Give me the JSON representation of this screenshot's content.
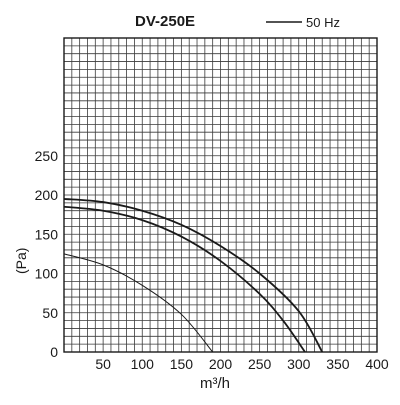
{
  "chart_data": {
    "type": "line",
    "title": "DV-250E",
    "xlabel": "m³/h",
    "ylabel": "(Pa)",
    "xlim": [
      0,
      400
    ],
    "ylim": [
      0,
      400
    ],
    "x_ticks": [
      "50",
      "100",
      "150",
      "200",
      "250",
      "300",
      "350",
      "400"
    ],
    "y_ticks": [
      "0",
      "50",
      "100",
      "150",
      "200",
      "250"
    ],
    "grid": true,
    "legend": {
      "label": "50 Hz",
      "position": "top-right"
    },
    "series": [
      {
        "x": [
          0,
          50,
          100,
          150,
          200,
          250,
          300,
          330
        ],
        "y": [
          195,
          191,
          180,
          162,
          135,
          100,
          52,
          0
        ]
      },
      {
        "x": [
          0,
          50,
          100,
          150,
          200,
          250,
          280,
          308
        ],
        "y": [
          185,
          180,
          168,
          147,
          116,
          74,
          40,
          0
        ]
      },
      {
        "x": [
          0,
          50,
          100,
          150,
          190
        ],
        "y": [
          125,
          111,
          85,
          48,
          0
        ]
      }
    ],
    "colors": {
      "lines": "#1a1a1a",
      "grid": "#3a3a3a",
      "background": "#ffffff"
    }
  }
}
